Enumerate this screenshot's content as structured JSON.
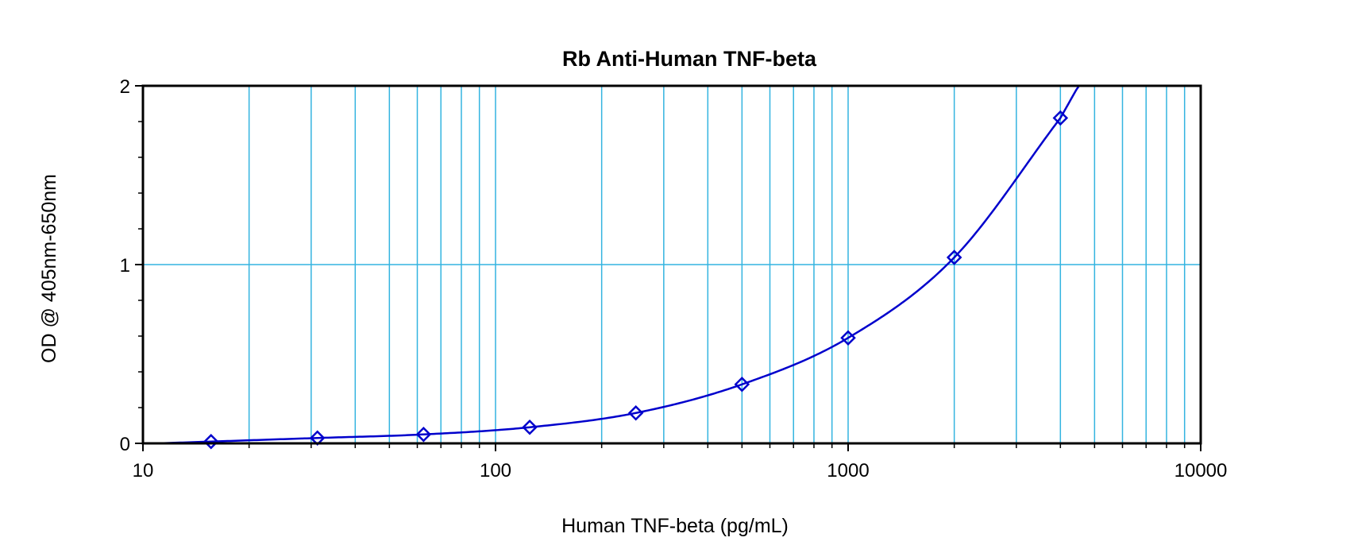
{
  "chart_data": {
    "type": "line",
    "title": "Rb Anti-Human TNF-beta",
    "xlabel": "Human TNF-beta (pg/mL)",
    "ylabel": "OD @ 405nm-650nm",
    "xscale": "log",
    "xlim": [
      10,
      10000
    ],
    "ylim": [
      0,
      2
    ],
    "x_tick_labels": [
      "10",
      "100",
      "1000",
      "10000"
    ],
    "y_tick_labels": [
      "0",
      "1",
      "2"
    ],
    "grid": true,
    "legend": "none",
    "series": [
      {
        "x": [
          15.6,
          31.25,
          62.5,
          125,
          250,
          500,
          1000,
          2000,
          4000
        ],
        "y": [
          0.01,
          0.03,
          0.05,
          0.09,
          0.17,
          0.33,
          0.59,
          1.04,
          1.82
        ]
      }
    ],
    "colors": {
      "series": "#0000CC",
      "grid": "#33B4E0",
      "frame": "#000000"
    }
  }
}
